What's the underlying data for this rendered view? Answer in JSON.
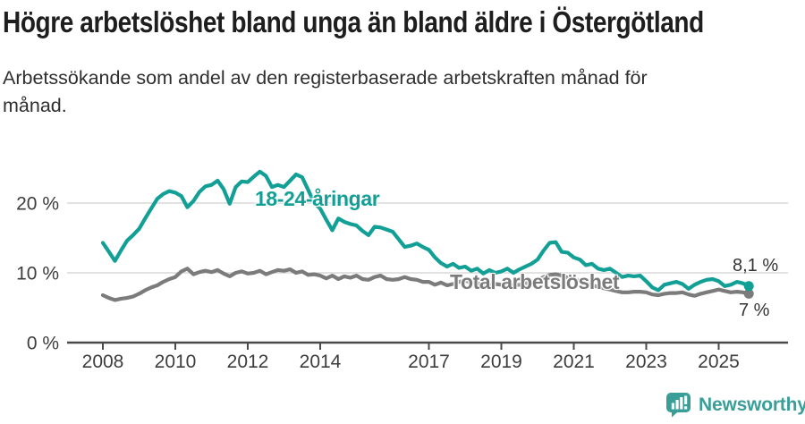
{
  "header": {
    "title": "Högre arbetslöshet bland unga än bland äldre i Östergötland",
    "subtitle_lines": [
      "Arbetssökande som andel av den registerbaserade arbetskraften månad för",
      "månad."
    ]
  },
  "chart_data": {
    "type": "line",
    "title": "Högre arbetslöshet bland unga än bland äldre i Östergötland",
    "subtitle": "Arbetssökande som andel av den registerbaserade arbetskraften månad för månad.",
    "xlabel": "",
    "ylabel": "",
    "unit": "%",
    "ylim": [
      0,
      26
    ],
    "grid": "horizontal",
    "legend_position": "inline-labels",
    "start_year": 2008.0,
    "step_months": 2,
    "x_ticks": [
      2008,
      2010,
      2012,
      2014,
      2017,
      2019,
      2021,
      2023,
      2025
    ],
    "y_ticks": [
      {
        "value": 20,
        "label": "20 %"
      },
      {
        "value": 10,
        "label": "10 %"
      },
      {
        "value": 0,
        "label": "0 %"
      }
    ],
    "series": [
      {
        "name": "18-24-åringar",
        "color": "#12a096",
        "end_label": "8,1 %",
        "values": [
          14.3,
          13.0,
          11.7,
          13.2,
          14.6,
          15.4,
          16.3,
          17.8,
          19.2,
          20.6,
          21.3,
          21.7,
          21.5,
          21.0,
          19.4,
          20.3,
          21.6,
          22.4,
          22.6,
          23.2,
          22.0,
          19.9,
          22.3,
          23.1,
          23.0,
          23.8,
          24.5,
          23.9,
          22.3,
          22.6,
          22.3,
          23.2,
          24.1,
          23.7,
          21.9,
          20.0,
          19.2,
          17.6,
          16.1,
          17.8,
          17.3,
          17.0,
          16.8,
          16.0,
          15.4,
          16.6,
          16.5,
          16.2,
          15.9,
          14.8,
          13.7,
          13.9,
          14.2,
          13.7,
          13.3,
          12.2,
          11.4,
          10.9,
          11.3,
          10.7,
          10.9,
          10.3,
          10.6,
          9.9,
          10.4,
          10.0,
          10.2,
          10.6,
          10.0,
          10.5,
          10.9,
          11.3,
          11.9,
          13.2,
          14.3,
          14.4,
          13.0,
          12.9,
          12.2,
          11.9,
          11.1,
          11.3,
          10.6,
          10.4,
          10.6,
          10.0,
          9.4,
          9.6,
          9.5,
          9.6,
          8.8,
          7.9,
          7.5,
          8.3,
          8.5,
          8.7,
          8.4,
          7.7,
          8.3,
          8.7,
          9.0,
          9.1,
          8.8,
          8.1,
          8.3,
          8.7,
          8.5,
          8.1
        ]
      },
      {
        "name": "Total arbetslöshet",
        "color": "#7b7b7b",
        "end_label": "7 %",
        "values": [
          6.8,
          6.4,
          6.1,
          6.3,
          6.4,
          6.6,
          7.0,
          7.5,
          7.9,
          8.2,
          8.7,
          9.1,
          9.4,
          10.2,
          10.6,
          9.8,
          10.1,
          10.3,
          10.1,
          10.4,
          9.9,
          9.5,
          10.0,
          10.2,
          9.9,
          10.0,
          10.3,
          9.8,
          10.1,
          10.4,
          10.3,
          10.5,
          10.0,
          10.2,
          9.7,
          9.8,
          9.6,
          9.2,
          9.6,
          9.1,
          9.5,
          9.3,
          9.6,
          9.1,
          9.0,
          9.4,
          9.6,
          9.1,
          9.0,
          9.1,
          9.4,
          9.1,
          9.0,
          8.7,
          8.7,
          8.3,
          8.6,
          8.2,
          8.4,
          8.7,
          8.9,
          8.6,
          8.5,
          8.3,
          8.2,
          8.4,
          8.3,
          8.4,
          8.2,
          8.3,
          8.5,
          8.7,
          8.9,
          9.4,
          9.7,
          9.8,
          9.6,
          9.3,
          9.1,
          8.8,
          8.5,
          8.2,
          8.0,
          7.8,
          7.6,
          7.4,
          7.2,
          7.2,
          7.3,
          7.3,
          7.2,
          6.9,
          6.8,
          7.0,
          7.1,
          7.1,
          7.2,
          6.9,
          6.7,
          7.0,
          7.2,
          7.4,
          7.6,
          7.4,
          7.2,
          7.3,
          7.2,
          7.0
        ]
      }
    ]
  },
  "footer": {
    "brand": "Newsworthy",
    "brand_color": "#3a9e98"
  }
}
